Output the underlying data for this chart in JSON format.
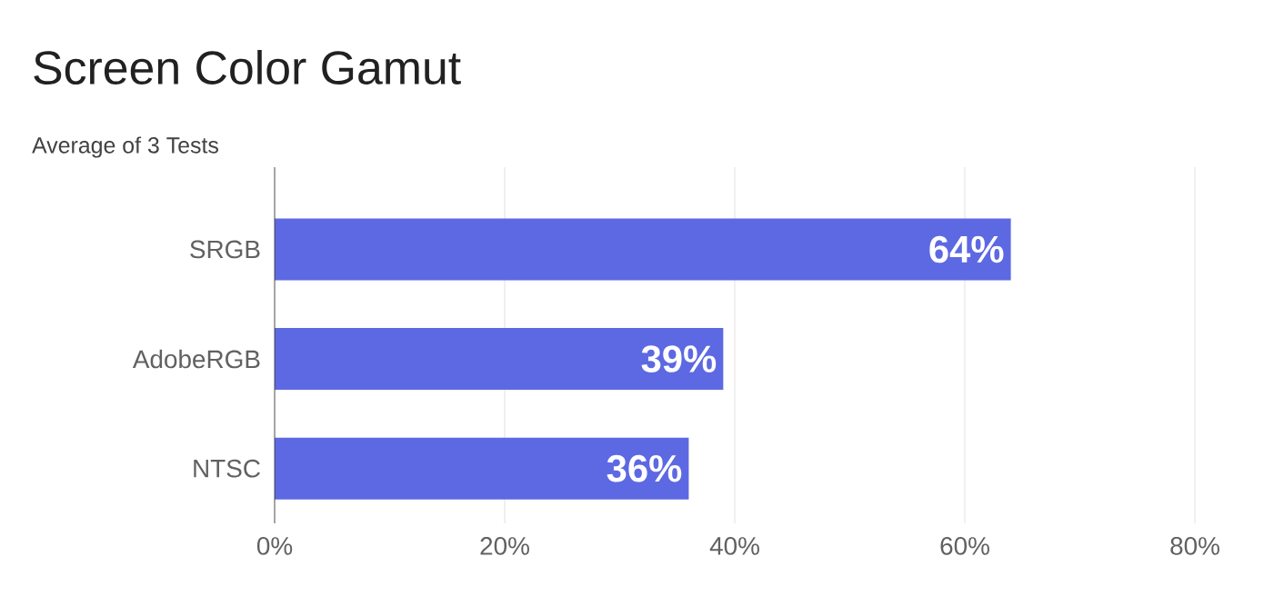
{
  "chart_data": {
    "type": "bar",
    "orientation": "horizontal",
    "title": "Screen Color Gamut",
    "subtitle": "Average of 3 Tests",
    "categories": [
      "SRGB",
      "AdobeRGB",
      "NTSC"
    ],
    "values": [
      64,
      39,
      36
    ],
    "value_labels": [
      "64%",
      "39%",
      "36%"
    ],
    "color": "#5d69e2",
    "xlim": [
      0,
      80
    ],
    "xticks": [
      {
        "value": 0,
        "label": "0%"
      },
      {
        "value": 20,
        "label": "20%"
      },
      {
        "value": 40,
        "label": "40%"
      },
      {
        "value": 60,
        "label": "60%"
      },
      {
        "value": 80,
        "label": "80%"
      }
    ],
    "grid": "x"
  }
}
